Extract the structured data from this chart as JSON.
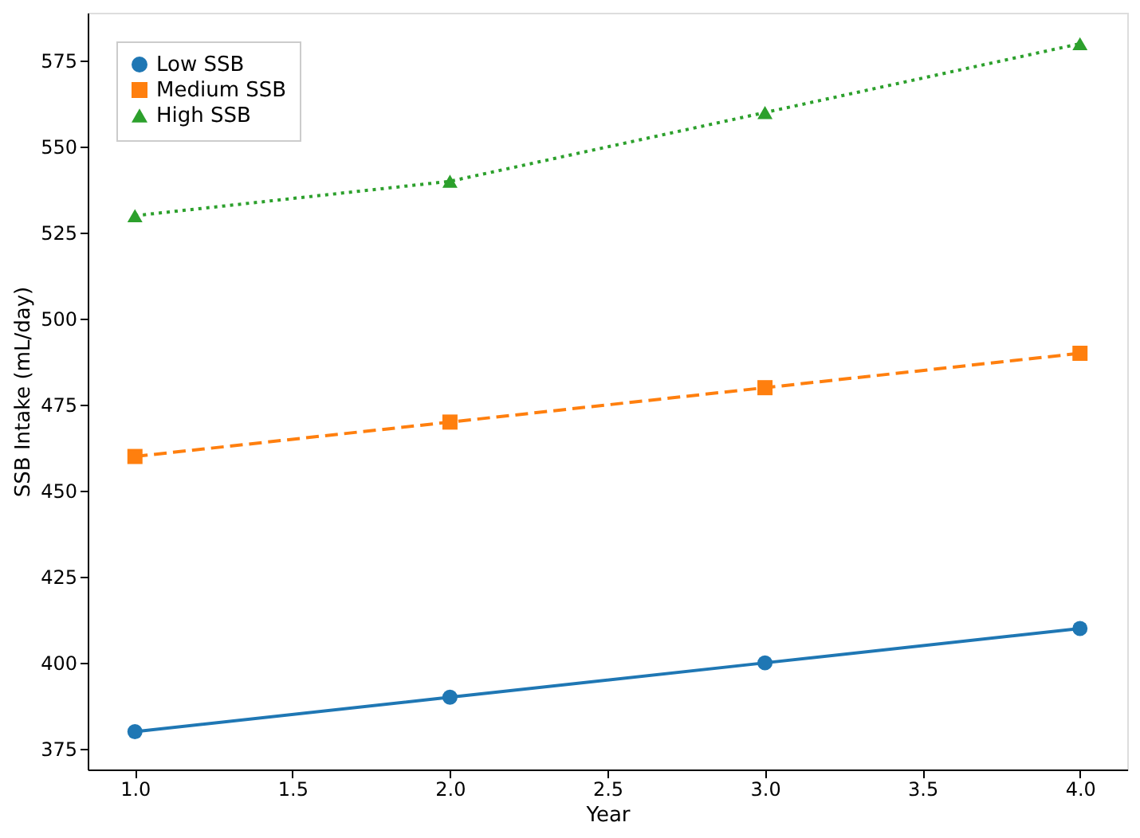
{
  "chart_data": {
    "type": "line",
    "xlabel": "Year",
    "ylabel": "SSB Intake (mL/day)",
    "x": [
      1,
      2,
      3,
      4
    ],
    "series": [
      {
        "name": "Low SSB",
        "color": "#1f77b4",
        "values": [
          380,
          390,
          400,
          410
        ],
        "marker": "circle",
        "line_style": "solid"
      },
      {
        "name": "Medium SSB",
        "color": "#ff7f0e",
        "values": [
          460,
          470,
          480,
          490
        ],
        "marker": "square",
        "line_style": "dashed"
      },
      {
        "name": "High SSB",
        "color": "#2ca02c",
        "values": [
          530,
          540,
          560,
          580
        ],
        "marker": "triangle",
        "line_style": "dotted"
      }
    ],
    "xlim": [
      0.85,
      4.15
    ],
    "ylim": [
      369,
      589
    ],
    "xticks": [
      {
        "value": 1,
        "label": "1.0"
      },
      {
        "value": 1.5,
        "label": "1.5"
      },
      {
        "value": 2,
        "label": "2.0"
      },
      {
        "value": 2.5,
        "label": "2.5"
      },
      {
        "value": 3,
        "label": "3.0"
      },
      {
        "value": 3.5,
        "label": "3.5"
      },
      {
        "value": 4,
        "label": "4.0"
      }
    ],
    "yticks": [
      375,
      400,
      425,
      450,
      475,
      500,
      525,
      550,
      575
    ],
    "grid": false,
    "legend": "top left"
  }
}
